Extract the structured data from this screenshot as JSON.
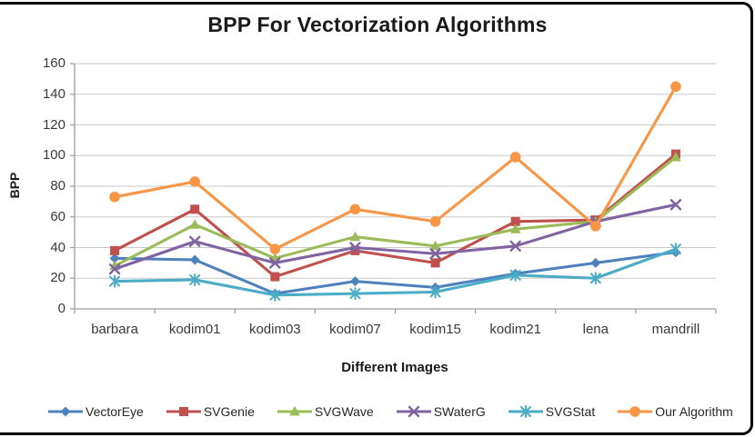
{
  "title": "BPP For Vectorization Algorithms",
  "chart_data": {
    "type": "line",
    "title": "BPP For Vectorization Algorithms",
    "xlabel": "Different Images",
    "ylabel": "BPP",
    "categories": [
      "barbara",
      "kodim01",
      "kodim03",
      "kodim07",
      "kodim15",
      "kodim21",
      "lena",
      "mandrill"
    ],
    "series": [
      {
        "name": "VectorEye",
        "color": "#4F81BD",
        "marker": "diamond",
        "values": [
          33,
          32,
          10,
          18,
          14,
          23,
          30,
          37
        ]
      },
      {
        "name": "SVGenie",
        "color": "#C0504D",
        "marker": "square",
        "values": [
          38,
          65,
          21,
          38,
          30,
          57,
          58,
          101
        ]
      },
      {
        "name": "SVGWave",
        "color": "#9BBB59",
        "marker": "triangle",
        "values": [
          28,
          55,
          33,
          47,
          41,
          52,
          57,
          99
        ]
      },
      {
        "name": "SWaterG",
        "color": "#8064A2",
        "marker": "x",
        "values": [
          26,
          44,
          30,
          40,
          36,
          41,
          57,
          68
        ]
      },
      {
        "name": "SVGStat",
        "color": "#4BACC6",
        "marker": "asterisk",
        "values": [
          18,
          19,
          9,
          10,
          11,
          22,
          20,
          39
        ]
      },
      {
        "name": "Our Algorithm",
        "color": "#F79646",
        "marker": "circle",
        "values": [
          73,
          83,
          39,
          65,
          57,
          99,
          54,
          145
        ]
      }
    ],
    "ylim": [
      0,
      160
    ],
    "yticks": [
      0,
      20,
      40,
      60,
      80,
      100,
      120,
      140,
      160
    ],
    "grid": "horizontal",
    "legend_position": "bottom",
    "colors": {
      "gridline": "#c9c9c9",
      "axis": "#9d9d9d",
      "text": "#3a3a3a",
      "frame_border": "#000000"
    }
  }
}
